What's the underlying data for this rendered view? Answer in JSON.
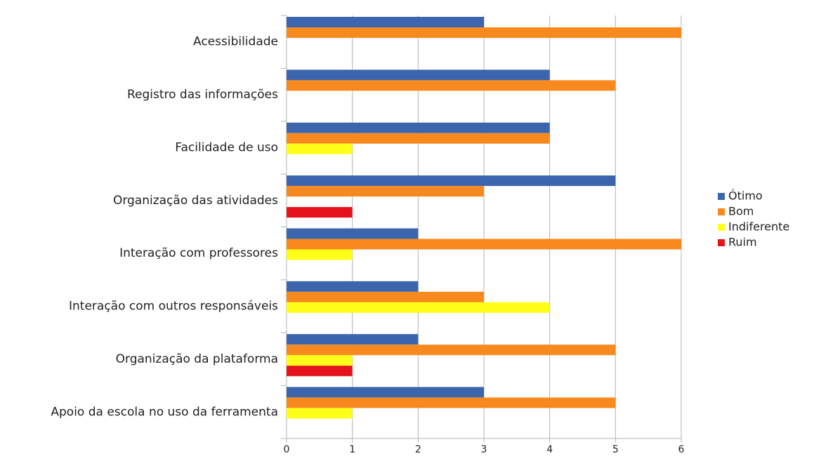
{
  "chart_data": {
    "type": "barh",
    "categories": [
      "Acessibilidade",
      "Registro das informações",
      "Facilidade de uso",
      "Organização das atividades",
      "Interação com professores",
      "Interação com outros responsáveis",
      "Organização da plataforma",
      "Apoio da escola no uso da ferramenta"
    ],
    "series": [
      {
        "name": "Ótimo",
        "color": "#3b65ad",
        "values": [
          3,
          4,
          4,
          5,
          2,
          2,
          2,
          3
        ]
      },
      {
        "name": "Bom",
        "color": "#f7891e",
        "values": [
          6,
          5,
          4,
          3,
          6,
          3,
          5,
          5
        ]
      },
      {
        "name": "Indiferente",
        "color": "#ffff1a",
        "values": [
          0,
          0,
          1,
          0,
          1,
          4,
          1,
          1
        ]
      },
      {
        "name": "Ruim",
        "color": "#e5121b",
        "values": [
          0,
          0,
          0,
          1,
          0,
          0,
          1,
          0
        ]
      }
    ],
    "xlim": [
      0,
      6
    ],
    "xticks": [
      0,
      1,
      2,
      3,
      4,
      5,
      6
    ],
    "grid": true,
    "legend": "right"
  }
}
